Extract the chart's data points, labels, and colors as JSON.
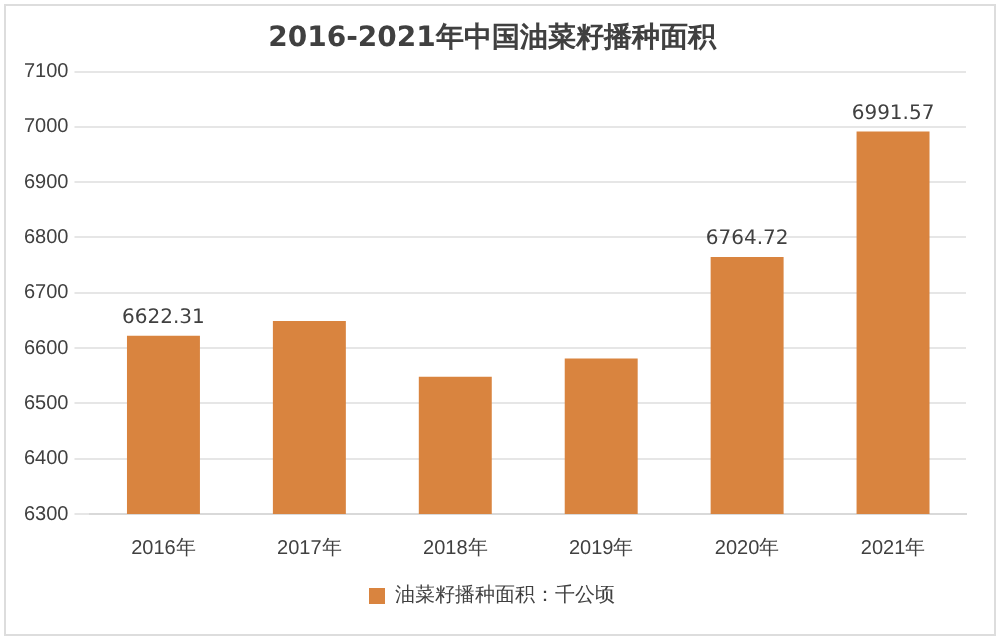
{
  "chart_data": {
    "type": "bar",
    "title": "2016-2021年中国油菜籽播种面积",
    "categories": [
      "2016年",
      "2017年",
      "2018年",
      "2019年",
      "2020年",
      "2021年"
    ],
    "series": [
      {
        "name": "油菜籽播种面积：千公顷",
        "color": "#d9843f",
        "values": [
          6622.31,
          6649,
          6548,
          6581,
          6764.72,
          6991.57
        ],
        "value_labels": [
          "6622.31",
          null,
          null,
          null,
          "6764.72",
          "6991.57"
        ]
      }
    ],
    "ylim": [
      6300,
      7100
    ],
    "yticks": [
      6300,
      6400,
      6500,
      6600,
      6700,
      6800,
      6900,
      7000,
      7100
    ],
    "grid": "y",
    "legend": "bottom"
  }
}
